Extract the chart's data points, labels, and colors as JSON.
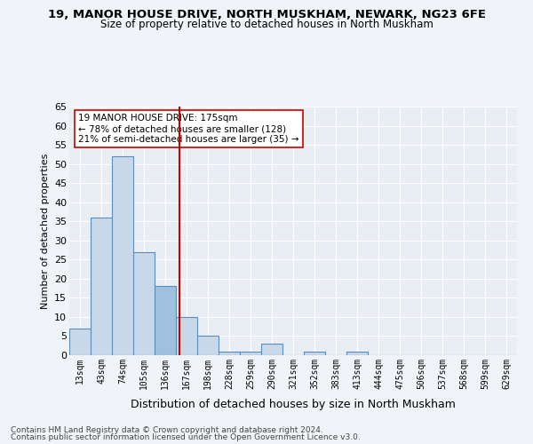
{
  "title1": "19, MANOR HOUSE DRIVE, NORTH MUSKHAM, NEWARK, NG23 6FE",
  "title2": "Size of property relative to detached houses in North Muskham",
  "xlabel": "Distribution of detached houses by size in North Muskham",
  "ylabel": "Number of detached properties",
  "bin_labels": [
    "13sqm",
    "43sqm",
    "74sqm",
    "105sqm",
    "136sqm",
    "167sqm",
    "198sqm",
    "228sqm",
    "259sqm",
    "290sqm",
    "321sqm",
    "352sqm",
    "383sqm",
    "413sqm",
    "444sqm",
    "475sqm",
    "506sqm",
    "537sqm",
    "568sqm",
    "599sqm",
    "629sqm"
  ],
  "bar_values": [
    7,
    36,
    52,
    27,
    18,
    10,
    5,
    1,
    1,
    3,
    0,
    1,
    0,
    1,
    0,
    0,
    0,
    0,
    0,
    0,
    0
  ],
  "bar_color": "#c8d8e8",
  "bar_edge_color": "#5b8db8",
  "highlight_bar_index": 4,
  "highlight_bar_color": "#a0c0e0",
  "highlight_bar_edge_color": "#5b8db8",
  "vline_x": 4.65,
  "vline_color": "#cc0000",
  "annotation_text": "19 MANOR HOUSE DRIVE: 175sqm\n← 78% of detached houses are smaller (128)\n21% of semi-detached houses are larger (35) →",
  "annotation_box_color": "#ffffff",
  "annotation_box_edge": "#cc0000",
  "footer1": "Contains HM Land Registry data © Crown copyright and database right 2024.",
  "footer2": "Contains public sector information licensed under the Open Government Licence v3.0.",
  "ylim": [
    0,
    65
  ],
  "yticks": [
    0,
    5,
    10,
    15,
    20,
    25,
    30,
    35,
    40,
    45,
    50,
    55,
    60,
    65
  ],
  "plot_bg_color": "#e8eef4",
  "fig_bg_color": "#f0f4f8"
}
